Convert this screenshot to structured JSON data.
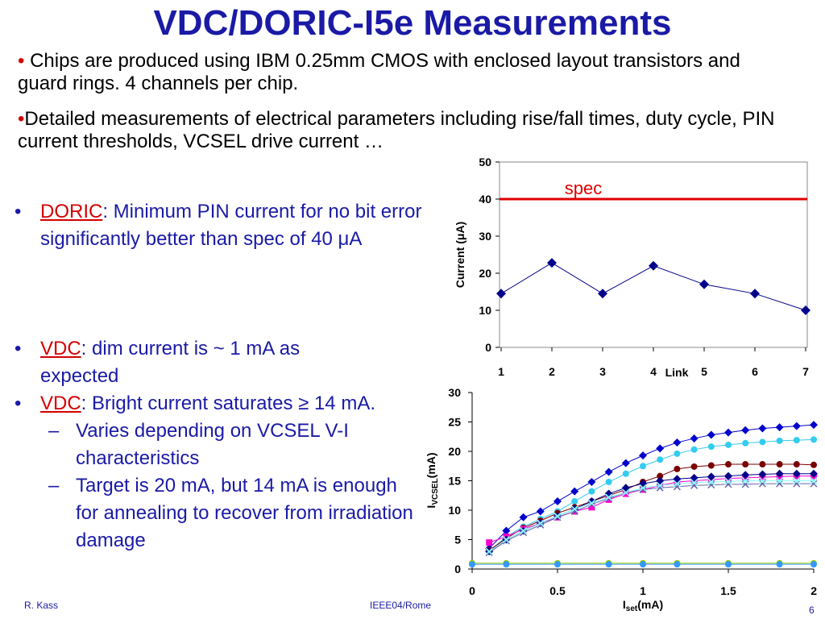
{
  "title": "VDC/DORIC-I5e Measurements",
  "top_bullets": [
    "Chips are produced using IBM 0.25mm CMOS with enclosed layout transistors and guard rings. 4 channels per chip.",
    "Detailed measurements of electrical parameters including rise/fall times, duty cycle, PIN current thresholds, VCSEL drive current …"
  ],
  "left_bullets": {
    "doric_label": "DORIC",
    "doric_text": ": Minimum PIN current for no bit error significantly better than spec of 40 μA",
    "vdc1_label": "VDC",
    "vdc1_text": ": dim current is ~ 1 mA as expected",
    "vdc2_label": "VDC",
    "vdc2_text": ": Bright current saturates ≥ 14 mA.",
    "sub1": "Varies depending on VCSEL V-I characteristics",
    "sub2": "Target is 20 mA, but 14 mA is enough for annealing to recover from irradiation damage"
  },
  "footer": {
    "author": "R. Kass",
    "venue": "IEEE04/Rome",
    "page": "6"
  },
  "chart_data": [
    {
      "type": "line",
      "xlabel": "Link",
      "ylabel": "Current (μA)",
      "x": [
        1,
        2,
        3,
        4,
        5,
        6,
        7
      ],
      "xlim": [
        1,
        7
      ],
      "ylim": [
        0,
        50
      ],
      "yticks": [
        0,
        10,
        20,
        30,
        40,
        50
      ],
      "series": [
        {
          "values": [
            14.5,
            22.8,
            14.5,
            22.0,
            17.0,
            14.5,
            10.0
          ],
          "color": "#00008b",
          "marker": "diamond"
        }
      ],
      "annotations": [
        {
          "text": "spec",
          "y": 40,
          "color": "#e00000"
        }
      ]
    },
    {
      "type": "line",
      "xlabel_main": "I",
      "xlabel_sub": "set",
      "xlabel_unit": "(mA)",
      "ylabel_main": "I",
      "ylabel_sub": "VCSEL",
      "ylabel_unit": "(mA)",
      "xlim": [
        0,
        2
      ],
      "ylim": [
        0,
        30
      ],
      "xticks": [
        0,
        0.5,
        1,
        1.5,
        2
      ],
      "xtick_labels": [
        "0",
        "0.5",
        "1",
        "1.5",
        "2"
      ],
      "yticks": [
        0,
        5,
        10,
        15,
        20,
        25,
        30
      ],
      "x": [
        0.1,
        0.2,
        0.3,
        0.4,
        0.5,
        0.6,
        0.7,
        0.8,
        0.9,
        1.0,
        1.1,
        1.2,
        1.3,
        1.4,
        1.5,
        1.6,
        1.7,
        1.8,
        1.9,
        2.0
      ],
      "series": [
        {
          "color": "#0000cd",
          "marker": "diamond",
          "values": [
            3.5,
            6.5,
            8.8,
            9.8,
            11.5,
            13.2,
            14.8,
            16.5,
            18.0,
            19.3,
            20.5,
            21.5,
            22.2,
            22.8,
            23.2,
            23.6,
            23.9,
            24.1,
            24.3,
            24.5
          ]
        },
        {
          "color": "#33ccee",
          "marker": "circle",
          "values": [
            3.0,
            5.5,
            7.2,
            8.5,
            9.8,
            11.5,
            13.2,
            14.8,
            16.2,
            17.5,
            18.6,
            19.6,
            20.3,
            20.8,
            21.1,
            21.4,
            21.6,
            21.8,
            21.9,
            22.0
          ]
        },
        {
          "color": "#7a0000",
          "marker": "circle",
          "values": [
            3.2,
            5.2,
            7.0,
            8.2,
            9.5,
            10.5,
            11.5,
            12.5,
            13.5,
            14.8,
            15.8,
            17.0,
            17.4,
            17.6,
            17.8,
            17.8,
            17.8,
            17.8,
            17.8,
            17.7
          ]
        },
        {
          "color": "#ff00cc",
          "marker": "square",
          "values": [
            4.5,
            5.5,
            6.8,
            7.8,
            8.8,
            9.8,
            10.5,
            11.8,
            12.8,
            13.5,
            14.2,
            14.8,
            15.0,
            15.2,
            15.4,
            15.5,
            15.6,
            15.7,
            15.8,
            15.8
          ]
        },
        {
          "color": "#00008b",
          "marker": "diamond",
          "values": [
            3.0,
            5.0,
            6.5,
            7.8,
            9.0,
            10.2,
            11.5,
            12.8,
            13.8,
            14.5,
            15.0,
            15.3,
            15.5,
            15.7,
            15.8,
            16.0,
            16.1,
            16.2,
            16.2,
            16.2
          ]
        },
        {
          "color": "#6666aa",
          "marker": "x",
          "values": [
            2.8,
            4.8,
            6.2,
            7.5,
            8.8,
            9.8,
            11.0,
            12.0,
            13.0,
            13.5,
            13.8,
            14.0,
            14.2,
            14.3,
            14.4,
            14.4,
            14.5,
            14.5,
            14.5,
            14.5
          ]
        },
        {
          "color": "#88ffff",
          "marker": "x",
          "values": [
            3.0,
            5.0,
            6.5,
            7.8,
            9.0,
            10.2,
            11.2,
            12.2,
            13.0,
            13.8,
            14.2,
            14.5,
            14.7,
            14.8,
            14.9,
            15.0,
            15.0,
            15.0,
            15.0,
            15.0
          ]
        },
        {
          "color": "#99cc00",
          "marker": "circle",
          "x": [
            0,
            0.2,
            0.5,
            0.8,
            1.0,
            1.2,
            1.5,
            1.8,
            2.0
          ],
          "values": [
            1.0,
            1.0,
            1.0,
            1.0,
            1.0,
            1.0,
            1.0,
            1.0,
            1.0
          ]
        },
        {
          "color": "#3399ff",
          "marker": "circle",
          "x": [
            0,
            0.2,
            0.5,
            0.8,
            1.0,
            1.2,
            1.5,
            1.8,
            2.0
          ],
          "values": [
            0.8,
            0.8,
            0.8,
            0.8,
            0.8,
            0.8,
            0.8,
            0.8,
            0.8
          ]
        }
      ]
    }
  ]
}
